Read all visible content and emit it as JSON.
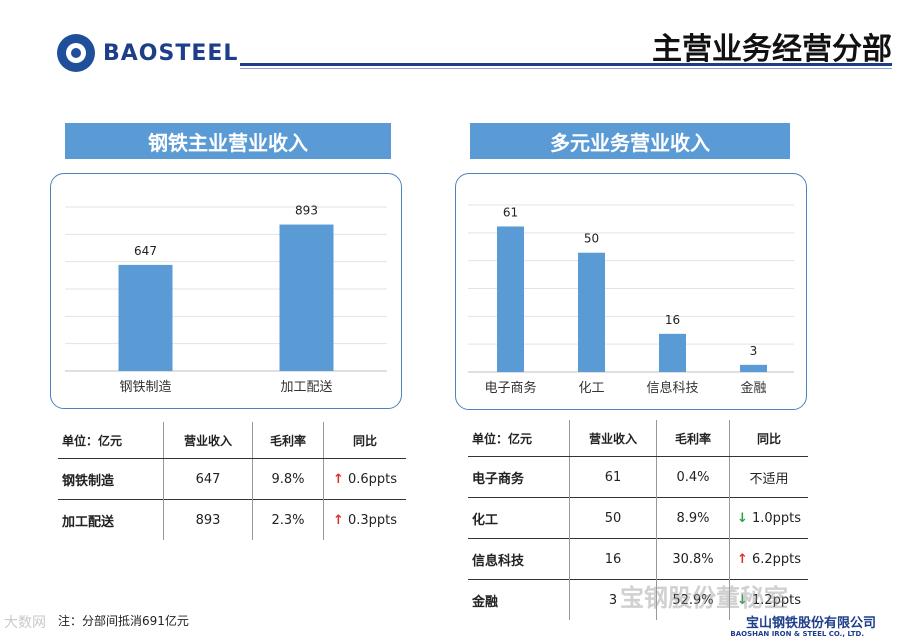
{
  "brand": {
    "name": "BAOSTEEL"
  },
  "page_title": "主营业务经营分部",
  "steel_section": {
    "banner": "钢铁主业营业收入"
  },
  "diversified_section": {
    "banner": "多元业务营业收入"
  },
  "chart_data": [
    {
      "type": "bar",
      "categories": [
        "钢铁制造",
        "加工配送"
      ],
      "values": [
        647,
        893
      ],
      "ylim": [
        0,
        1000
      ],
      "grid": true,
      "color": "#5b9bd5"
    },
    {
      "type": "bar",
      "categories": [
        "电子商务",
        "化工",
        "信息科技",
        "金融"
      ],
      "values": [
        61,
        50,
        16,
        3
      ],
      "ylim": [
        0,
        70
      ],
      "grid": true,
      "color": "#5b9bd5"
    }
  ],
  "steel_table": {
    "headers": [
      "单位：亿元",
      "营业收入",
      "毛利率",
      "同比"
    ],
    "rows": [
      {
        "name": "钢铁制造",
        "revenue": "647",
        "margin": "9.8%",
        "arrow": "↑",
        "direction": "up",
        "yoy": "0.6ppts"
      },
      {
        "name": "加工配送",
        "revenue": "893",
        "margin": "2.3%",
        "arrow": "↑",
        "direction": "up",
        "yoy": "0.3ppts"
      }
    ]
  },
  "diversified_table": {
    "headers": [
      "单位：亿元",
      "营业收入",
      "毛利率",
      "同比"
    ],
    "rows": [
      {
        "name": "电子商务",
        "revenue": "61",
        "margin": "0.4%",
        "arrow": "",
        "direction": "none",
        "yoy": "不适用"
      },
      {
        "name": "化工",
        "revenue": "50",
        "margin": "8.9%",
        "arrow": "↓",
        "direction": "down",
        "yoy": "1.0ppts"
      },
      {
        "name": "信息科技",
        "revenue": "16",
        "margin": "30.8%",
        "arrow": "↑",
        "direction": "up",
        "yoy": "6.2ppts"
      },
      {
        "name": "金融",
        "revenue": "3",
        "margin": "52.9%",
        "arrow": "↓",
        "direction": "down",
        "yoy": "1.2ppts"
      }
    ]
  },
  "note": "注：分部间抵消691亿元",
  "watermark": "宝钢股份董秘室",
  "watermark_left": "大数网",
  "footer": {
    "company_cn": "宝山钢铁股份有限公司",
    "company_en": "BAOSHAN IRON & STEEL CO., LTD."
  }
}
